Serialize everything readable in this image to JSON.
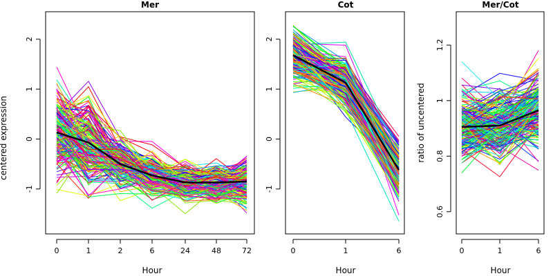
{
  "chart_data": [
    {
      "type": "line",
      "title": "Mer",
      "xlabel": "Hour",
      "ylabel": "centered expression",
      "categories": [
        "0",
        "1",
        "2",
        "6",
        "24",
        "48",
        "72"
      ],
      "ylim": [
        -1.9,
        2.55
      ],
      "yticks": [
        -1,
        0,
        1,
        2
      ],
      "grid": false,
      "series_count": 200,
      "series_color": "rainbow",
      "mean": {
        "name": "mean",
        "color": "#000000",
        "values": [
          0.13,
          -0.07,
          -0.5,
          -0.73,
          -0.87,
          -0.87,
          -0.85
        ]
      },
      "spread_sd": [
        0.45,
        0.42,
        0.25,
        0.22,
        0.18,
        0.18,
        0.22
      ]
    },
    {
      "type": "line",
      "title": "Cot",
      "xlabel": "Hour",
      "ylabel": "",
      "categories": [
        "0",
        "1",
        "6"
      ],
      "ylim": [
        -1.9,
        2.55
      ],
      "yticks": [
        -1,
        0,
        1,
        2
      ],
      "grid": false,
      "series_count": 200,
      "series_color": "rainbow",
      "mean": {
        "name": "mean",
        "color": "#000000",
        "values": [
          1.68,
          1.13,
          -0.62
        ]
      },
      "spread_sd": [
        0.3,
        0.25,
        0.28
      ]
    },
    {
      "type": "line",
      "title": "Mer/Cot",
      "xlabel": "Hour",
      "ylabel": "ratio of uncentered",
      "categories": [
        "0",
        "1",
        "6"
      ],
      "ylim": [
        0.52,
        1.32
      ],
      "yticks": [
        0.6,
        0.8,
        1.0,
        1.2
      ],
      "grid": false,
      "series_count": 200,
      "series_color": "rainbow",
      "mean": {
        "name": "mean",
        "color": "#000000",
        "values": [
          0.905,
          0.91,
          0.965
        ]
      },
      "spread_sd": [
        0.065,
        0.06,
        0.07
      ]
    }
  ]
}
